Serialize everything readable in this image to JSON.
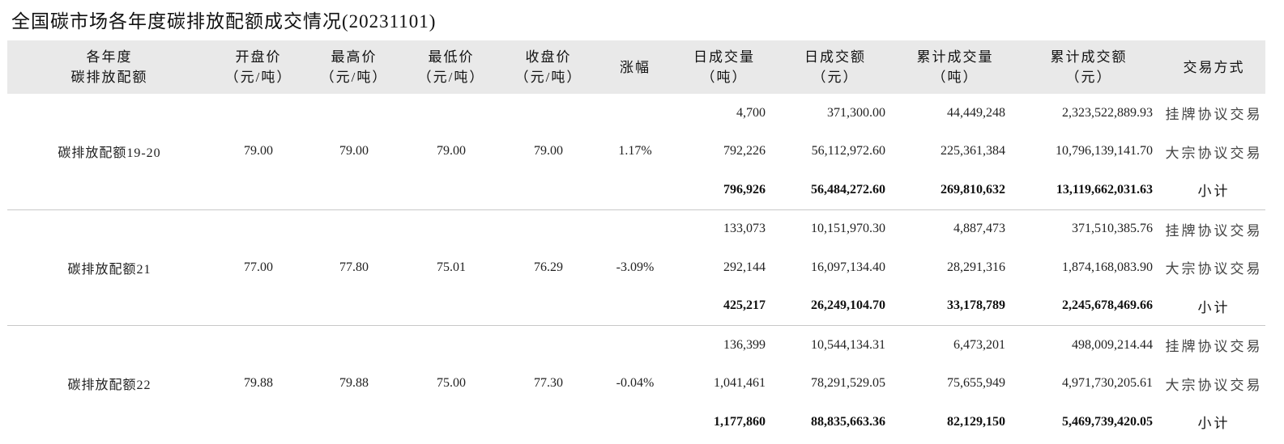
{
  "title": "全国碳市场各年度碳排放配额成交情况(20231101)",
  "headers": [
    [
      "各年度",
      "碳排放配额"
    ],
    [
      "开盘价",
      "（元/吨）"
    ],
    [
      "最高价",
      "（元/吨）"
    ],
    [
      "最低价",
      "（元/吨）"
    ],
    [
      "收盘价",
      "（元/吨）"
    ],
    [
      "涨幅"
    ],
    [
      "日成交量",
      "（吨）"
    ],
    [
      "日成交额",
      "（元）"
    ],
    [
      "累计成交量",
      "（吨）"
    ],
    [
      "累计成交额",
      "（元）"
    ],
    [
      "交易方式"
    ]
  ],
  "groups": [
    {
      "name": "碳排放配额19-20",
      "open": "79.00",
      "high": "79.00",
      "low": "79.00",
      "close": "79.00",
      "change": "1.17%",
      "rows": [
        {
          "vol": "4,700",
          "amt": "371,300.00",
          "cum_vol": "44,449,248",
          "cum_amt": "2,323,522,889.93",
          "mode": "挂牌协议交易"
        },
        {
          "vol": "792,226",
          "amt": "56,112,972.60",
          "cum_vol": "225,361,384",
          "cum_amt": "10,796,139,141.70",
          "mode": "大宗协议交易"
        },
        {
          "vol": "796,926",
          "amt": "56,484,272.60",
          "cum_vol": "269,810,632",
          "cum_amt": "13,119,662,031.63",
          "mode": "小计"
        }
      ]
    },
    {
      "name": "碳排放配额21",
      "open": "77.00",
      "high": "77.80",
      "low": "75.01",
      "close": "76.29",
      "change": "-3.09%",
      "rows": [
        {
          "vol": "133,073",
          "amt": "10,151,970.30",
          "cum_vol": "4,887,473",
          "cum_amt": "371,510,385.76",
          "mode": "挂牌协议交易"
        },
        {
          "vol": "292,144",
          "amt": "16,097,134.40",
          "cum_vol": "28,291,316",
          "cum_amt": "1,874,168,083.90",
          "mode": "大宗协议交易"
        },
        {
          "vol": "425,217",
          "amt": "26,249,104.70",
          "cum_vol": "33,178,789",
          "cum_amt": "2,245,678,469.66",
          "mode": "小计"
        }
      ]
    },
    {
      "name": "碳排放配额22",
      "open": "79.88",
      "high": "79.88",
      "low": "75.00",
      "close": "77.30",
      "change": "-0.04%",
      "rows": [
        {
          "vol": "136,399",
          "amt": "10,544,134.31",
          "cum_vol": "6,473,201",
          "cum_amt": "498,009,214.44",
          "mode": "挂牌协议交易"
        },
        {
          "vol": "1,041,461",
          "amt": "78,291,529.05",
          "cum_vol": "75,655,949",
          "cum_amt": "4,971,730,205.61",
          "mode": "大宗协议交易"
        },
        {
          "vol": "1,177,860",
          "amt": "88,835,663.36",
          "cum_vol": "82,129,150",
          "cum_amt": "5,469,739,420.05",
          "mode": "小计"
        }
      ]
    }
  ]
}
